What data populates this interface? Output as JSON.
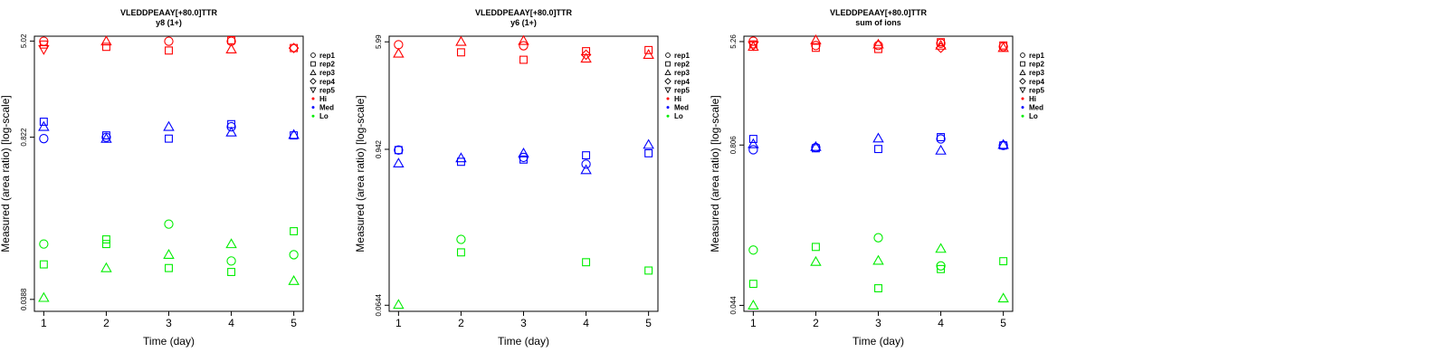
{
  "chart_data": [
    {
      "type": "scatter",
      "title": "VLEDDPEAAY[+80.0]TTR",
      "subtitle": "y8 (1+)",
      "xlabel": "Time (day)",
      "ylabel": "Measured (area ratio) [log-scale]",
      "x_ticks": [
        "1",
        "2",
        "3",
        "4",
        "5"
      ],
      "y_ticks": [
        "0.0388",
        "0.822",
        "5.02"
      ],
      "y_tick_values": [
        0.0388,
        0.822,
        5.02
      ],
      "ylim": [
        0.031,
        5.5
      ],
      "yscale": "log",
      "legend": [
        "rep1",
        "rep2",
        "rep3",
        "rep4",
        "rep5",
        "Hi",
        "Med",
        "Lo"
      ],
      "legend_position": "right",
      "series": [
        {
          "level": "Hi",
          "rep": "rep1",
          "x": [
            1,
            3,
            4
          ],
          "y": [
            5.0,
            5.0,
            5.0
          ]
        },
        {
          "level": "Hi",
          "rep": "rep2",
          "x": [
            1,
            2,
            3,
            4,
            5
          ],
          "y": [
            4.7,
            4.5,
            4.2,
            5.1,
            4.4
          ]
        },
        {
          "level": "Hi",
          "rep": "rep3",
          "x": [
            2,
            4
          ],
          "y": [
            5.0,
            4.3
          ]
        },
        {
          "level": "Hi",
          "rep": "rep4",
          "x": [
            5
          ],
          "y": [
            4.4
          ]
        },
        {
          "level": "Hi",
          "rep": "rep5",
          "x": [
            1
          ],
          "y": [
            4.3
          ]
        },
        {
          "level": "Med",
          "rep": "rep1",
          "x": [
            1,
            2,
            4
          ],
          "y": [
            0.8,
            0.82,
            1.0
          ]
        },
        {
          "level": "Med",
          "rep": "rep2",
          "x": [
            1,
            2,
            3,
            4,
            5
          ],
          "y": [
            1.1,
            0.85,
            0.8,
            1.05,
            0.85
          ]
        },
        {
          "level": "Med",
          "rep": "rep3",
          "x": [
            1,
            2,
            3,
            4,
            5
          ],
          "y": [
            1.0,
            0.8,
            1.0,
            0.9,
            0.86
          ]
        },
        {
          "level": "Lo",
          "rep": "rep1",
          "x": [
            1,
            3,
            4,
            5
          ],
          "y": [
            0.11,
            0.16,
            0.08,
            0.09
          ]
        },
        {
          "level": "Lo",
          "rep": "rep2",
          "x": [
            1,
            2,
            2,
            3,
            4,
            5
          ],
          "y": [
            0.075,
            0.12,
            0.11,
            0.07,
            0.065,
            0.14
          ]
        },
        {
          "level": "Lo",
          "rep": "rep3",
          "x": [
            1,
            2,
            3,
            4,
            5
          ],
          "y": [
            0.04,
            0.07,
            0.09,
            0.11,
            0.055
          ]
        }
      ]
    },
    {
      "type": "scatter",
      "title": "VLEDDPEAAY[+80.0]TTR",
      "subtitle": "y6 (1+)",
      "xlabel": "Time (day)",
      "ylabel": "Measured (area ratio) [log-scale]",
      "x_ticks": [
        "1",
        "2",
        "3",
        "4",
        "5"
      ],
      "y_ticks": [
        "0.0644",
        "0.942",
        "5.99"
      ],
      "y_tick_values": [
        0.0644,
        0.942,
        5.99
      ],
      "ylim": [
        0.058,
        6.6
      ],
      "yscale": "log",
      "legend": [
        "rep1",
        "rep2",
        "rep3",
        "rep4",
        "rep5",
        "Hi",
        "Med",
        "Lo"
      ],
      "legend_position": "right",
      "series": [
        {
          "level": "Hi",
          "rep": "rep1",
          "x": [
            1,
            3
          ],
          "y": [
            5.7,
            5.6
          ]
        },
        {
          "level": "Hi",
          "rep": "rep2",
          "x": [
            2,
            3,
            4,
            5
          ],
          "y": [
            5.0,
            4.4,
            5.1,
            5.2
          ]
        },
        {
          "level": "Hi",
          "rep": "rep3",
          "x": [
            1,
            2,
            3,
            4,
            5
          ],
          "y": [
            4.9,
            6.0,
            6.1,
            4.5,
            4.8
          ]
        },
        {
          "level": "Hi",
          "rep": "rep4",
          "x": [
            4
          ],
          "y": [
            4.8
          ]
        },
        {
          "level": "Med",
          "rep": "rep1",
          "x": [
            1,
            3,
            4
          ],
          "y": [
            0.93,
            0.82,
            0.73
          ]
        },
        {
          "level": "Med",
          "rep": "rep2",
          "x": [
            1,
            2,
            3,
            4,
            5
          ],
          "y": [
            0.93,
            0.76,
            0.79,
            0.85,
            0.88
          ]
        },
        {
          "level": "Med",
          "rep": "rep3",
          "x": [
            1,
            2,
            3,
            4,
            5
          ],
          "y": [
            0.74,
            0.81,
            0.88,
            0.66,
            1.02
          ]
        },
        {
          "level": "Lo",
          "rep": "rep1",
          "x": [
            2
          ],
          "y": [
            0.2
          ]
        },
        {
          "level": "Lo",
          "rep": "rep2",
          "x": [
            2,
            4,
            5
          ],
          "y": [
            0.16,
            0.135,
            0.117
          ]
        },
        {
          "level": "Lo",
          "rep": "rep3",
          "x": [
            1
          ],
          "y": [
            0.065
          ]
        }
      ]
    },
    {
      "type": "scatter",
      "title": "VLEDDPEAAY[+80.0]TTR",
      "subtitle": "sum of ions",
      "xlabel": "Time (day)",
      "ylabel": "Measured (area ratio) [log-scale]",
      "x_ticks": [
        "1",
        "2",
        "3",
        "4",
        "5"
      ],
      "y_ticks": [
        "0.044",
        "0.806",
        "5.26"
      ],
      "y_tick_values": [
        0.044,
        0.806,
        5.26
      ],
      "ylim": [
        0.0395,
        5.8
      ],
      "yscale": "log",
      "legend": [
        "rep1",
        "rep2",
        "rep3",
        "rep4",
        "rep5",
        "Hi",
        "Med",
        "Lo"
      ],
      "legend_position": "right",
      "series": [
        {
          "level": "Hi",
          "rep": "rep1",
          "x": [
            1,
            2,
            3,
            4,
            5
          ],
          "y": [
            5.3,
            4.9,
            4.9,
            5.1,
            4.8
          ]
        },
        {
          "level": "Hi",
          "rep": "rep2",
          "x": [
            1,
            2,
            3,
            4,
            5
          ],
          "y": [
            5.0,
            4.7,
            4.6,
            5.2,
            4.9
          ]
        },
        {
          "level": "Hi",
          "rep": "rep3",
          "x": [
            1,
            2,
            3,
            4,
            5
          ],
          "y": [
            4.8,
            5.4,
            5.0,
            4.9,
            4.7
          ]
        },
        {
          "level": "Hi",
          "rep": "rep4",
          "x": [
            4
          ],
          "y": [
            4.7
          ]
        },
        {
          "level": "Hi",
          "rep": "rep5",
          "x": [
            1
          ],
          "y": [
            4.9
          ]
        },
        {
          "level": "Med",
          "rep": "rep1",
          "x": [
            1,
            2,
            4,
            5
          ],
          "y": [
            0.74,
            0.77,
            0.9,
            0.8
          ]
        },
        {
          "level": "Med",
          "rep": "rep2",
          "x": [
            1,
            2,
            3,
            4,
            5
          ],
          "y": [
            0.9,
            0.76,
            0.75,
            0.93,
            0.8
          ]
        },
        {
          "level": "Med",
          "rep": "rep3",
          "x": [
            1,
            2,
            3,
            4,
            5
          ],
          "y": [
            0.82,
            0.78,
            0.91,
            0.73,
            0.81
          ]
        },
        {
          "level": "Lo",
          "rep": "rep1",
          "x": [
            1,
            3,
            4
          ],
          "y": [
            0.12,
            0.15,
            0.09
          ]
        },
        {
          "level": "Lo",
          "rep": "rep2",
          "x": [
            1,
            2,
            3,
            4,
            5
          ],
          "y": [
            0.065,
            0.127,
            0.06,
            0.085,
            0.098
          ]
        },
        {
          "level": "Lo",
          "rep": "rep3",
          "x": [
            1,
            2,
            3,
            4,
            5
          ],
          "y": [
            0.044,
            0.097,
            0.099,
            0.123,
            0.05
          ]
        }
      ]
    }
  ],
  "colors": {
    "Hi": "#ff0000",
    "Med": "#0000ff",
    "Lo": "#00ee00"
  },
  "legend_marker_names": {
    "rep1": "circle",
    "rep2": "square",
    "rep3": "triangle-up",
    "rep4": "diamond",
    "rep5": "triangle-down"
  }
}
